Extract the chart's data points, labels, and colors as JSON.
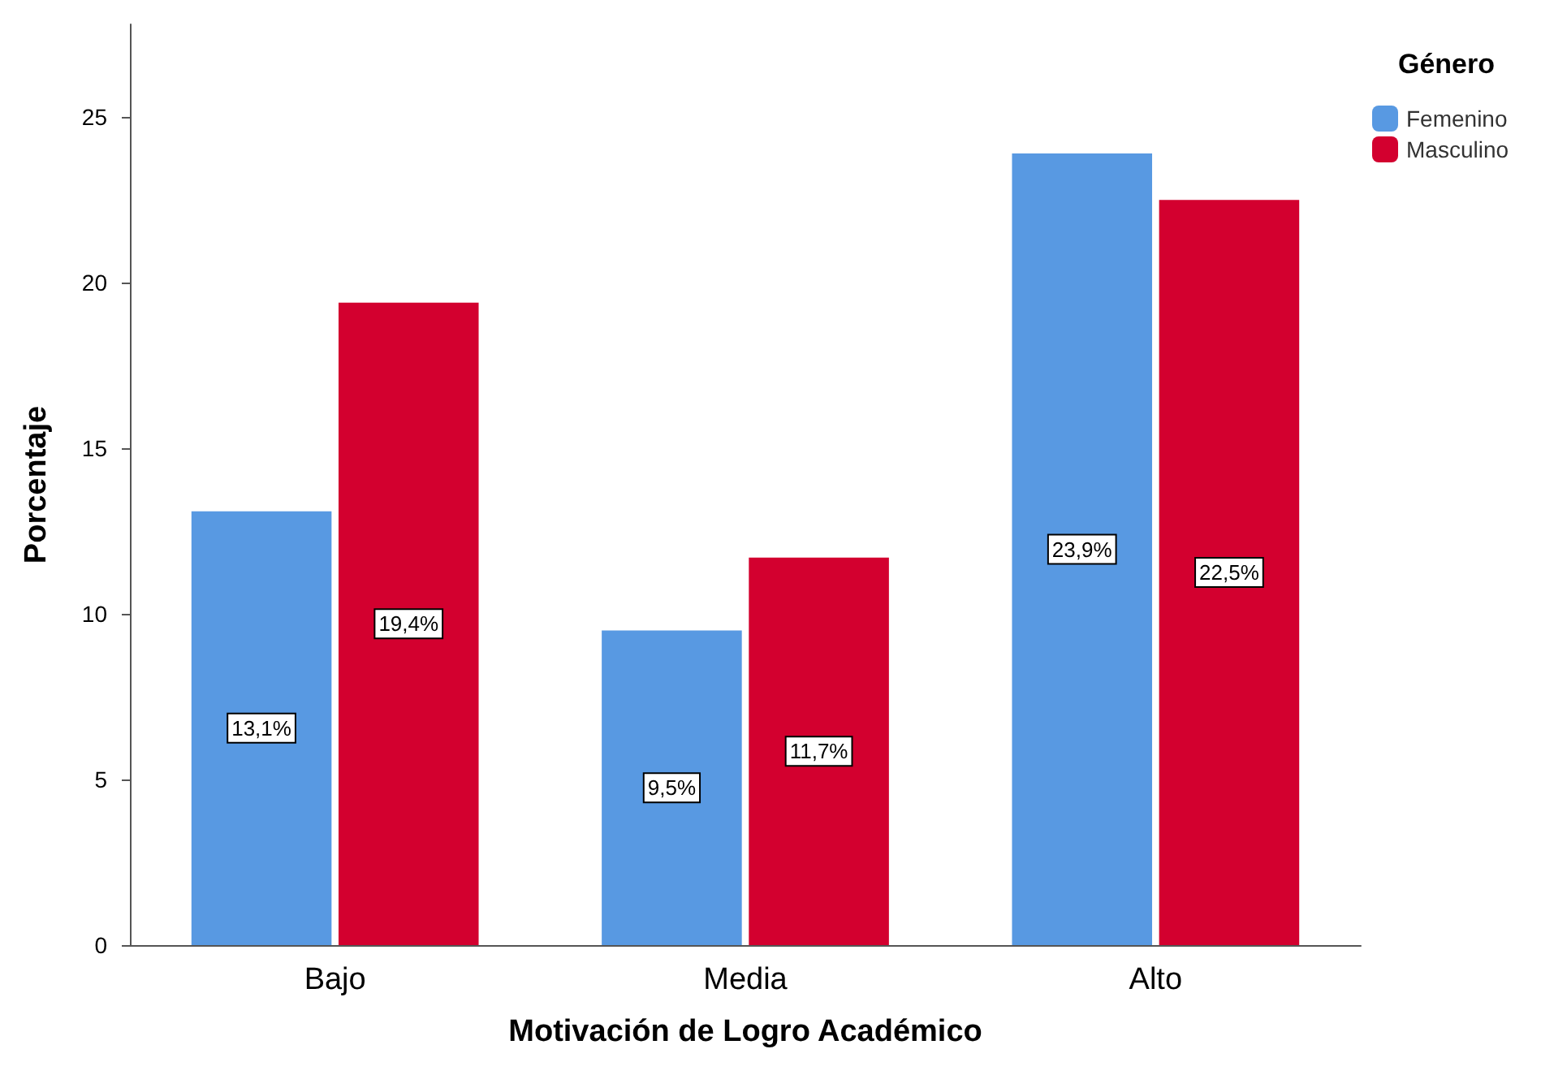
{
  "chart_data": {
    "type": "bar",
    "xlabel": "Motivación de Logro Académico",
    "ylabel": "Porcentaje",
    "legend_title": "Género",
    "categories": [
      "Bajo",
      "Media",
      "Alto"
    ],
    "series": [
      {
        "name": "Femenino",
        "color": "#5899e2",
        "values": [
          13.1,
          9.5,
          23.9
        ],
        "value_labels": [
          "13,1%",
          "9,5%",
          "23,9%"
        ]
      },
      {
        "name": "Masculino",
        "color": "#d3002f",
        "values": [
          19.4,
          11.7,
          22.5
        ],
        "value_labels": [
          "19,4%",
          "11,7%",
          "22,5%"
        ]
      }
    ],
    "ylim": [
      0,
      27.8
    ],
    "yticks": [
      0,
      5,
      10,
      15,
      20,
      25
    ],
    "grid": false,
    "legend": "top right"
  }
}
